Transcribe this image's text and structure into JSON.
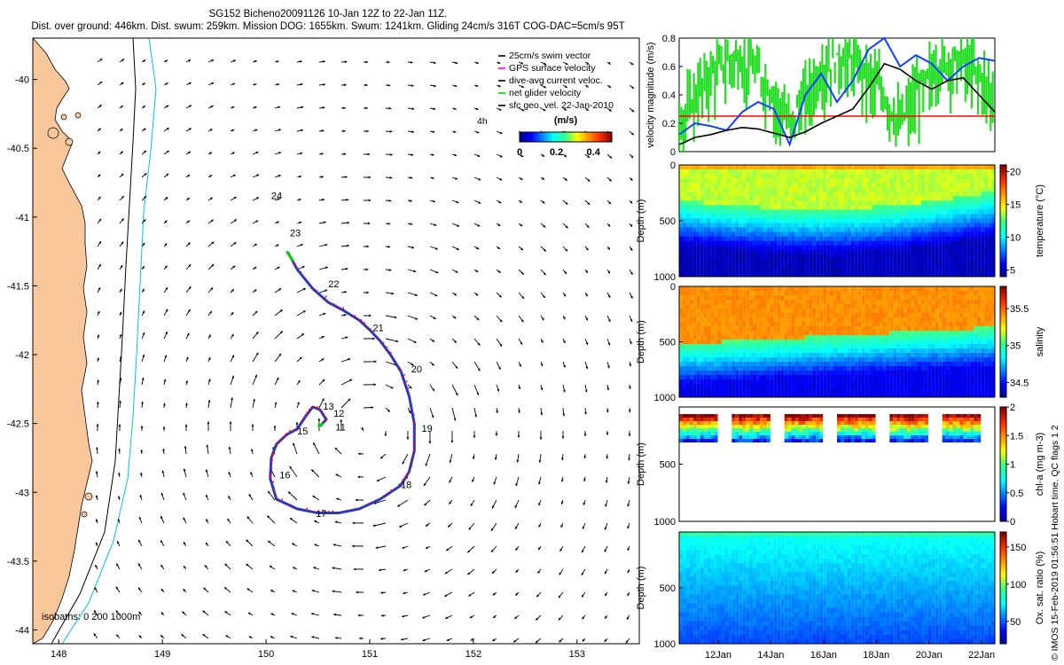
{
  "header": {
    "line1": "SG152 Bicheno20091126 10-Jan 12Z to 22-Jan 11Z.",
    "line2": "Dist. over ground: 446km. Dist. swum: 259km. Mission DOG: 1655km. Swum: 1241km. Gliding 24cm/s 316T COG-DAC=5cm/s 95T"
  },
  "credit": "© IMOS 15-Feb-2019 01:56:51 Hobart time. QC flags 1  2",
  "chart_data": [
    {
      "type": "scatter",
      "panel": "map",
      "x_ticks": [
        148,
        149,
        150,
        151,
        152,
        153
      ],
      "y_ticks": [
        -40,
        -40.5,
        -41,
        -41.5,
        -42,
        -42.5,
        -43,
        -43.5,
        -44
      ],
      "xlim": [
        147.75,
        153.6
      ],
      "ylim": [
        -44.1,
        -39.7
      ],
      "legend": {
        "position": "top-right",
        "entries": [
          {
            "label": "25cm/s swim vector",
            "color": "#000000"
          },
          {
            "label": "GPS surface velocity",
            "color": "#ff00ff"
          },
          {
            "label": "dive-avg current veloc.",
            "color": "#000000"
          },
          {
            "label": "net glider velocity",
            "color": "#00cc00"
          },
          {
            "label": "sfc geo. vel. 22-Jan-2010",
            "color": "#000000"
          }
        ]
      },
      "colorbar": {
        "title": "(m/s)",
        "ticks": [
          "0",
          "0.2",
          "0.4"
        ],
        "range": [
          0,
          0.5
        ]
      },
      "label_4h": "4h",
      "isobath_label": "isobaths: 0   200  1000m",
      "colors": {
        "land": "#f8c89c",
        "isobath_200": "#000000",
        "isobath_1000": "#00c8dc",
        "track": "#1e3cc8",
        "track_markers": "#ff0000"
      },
      "track": [
        [
          150.22,
          -41.27
        ],
        [
          150.3,
          -41.38
        ],
        [
          150.45,
          -41.52
        ],
        [
          150.6,
          -41.62
        ],
        [
          150.75,
          -41.68
        ],
        [
          150.9,
          -41.75
        ],
        [
          151.0,
          -41.82
        ],
        [
          151.1,
          -41.9
        ],
        [
          151.2,
          -42.0
        ],
        [
          151.3,
          -42.12
        ],
        [
          151.38,
          -42.3
        ],
        [
          151.43,
          -42.5
        ],
        [
          151.43,
          -42.7
        ],
        [
          151.38,
          -42.85
        ],
        [
          151.3,
          -42.95
        ],
        [
          151.1,
          -43.05
        ],
        [
          150.9,
          -43.12
        ],
        [
          150.7,
          -43.15
        ],
        [
          150.5,
          -43.15
        ],
        [
          150.3,
          -43.12
        ],
        [
          150.1,
          -43.05
        ],
        [
          150.04,
          -42.9
        ],
        [
          150.05,
          -42.75
        ],
        [
          150.1,
          -42.65
        ],
        [
          150.2,
          -42.58
        ],
        [
          150.3,
          -42.54
        ],
        [
          150.38,
          -42.45
        ],
        [
          150.45,
          -42.38
        ],
        [
          150.52,
          -42.4
        ],
        [
          150.58,
          -42.47
        ],
        [
          150.52,
          -42.52
        ]
      ],
      "day_labels": [
        {
          "text": "24",
          "lon": 150.05,
          "lat": -40.87
        },
        {
          "text": "23",
          "lon": 150.23,
          "lat": -41.14
        },
        {
          "text": "22",
          "lon": 150.6,
          "lat": -41.51
        },
        {
          "text": "21",
          "lon": 151.03,
          "lat": -41.83
        },
        {
          "text": "20",
          "lon": 151.4,
          "lat": -42.13
        },
        {
          "text": "19",
          "lon": 151.5,
          "lat": -42.56
        },
        {
          "text": "18",
          "lon": 151.3,
          "lat": -42.97
        },
        {
          "text": "17",
          "lon": 150.48,
          "lat": -43.18
        },
        {
          "text": "16",
          "lon": 150.13,
          "lat": -42.9
        },
        {
          "text": "15",
          "lon": 150.3,
          "lat": -42.58
        },
        {
          "text": "13",
          "lon": 150.55,
          "lat": -42.4
        },
        {
          "text": "12",
          "lon": 150.65,
          "lat": -42.45
        },
        {
          "text": "11",
          "lon": 150.67,
          "lat": -42.55
        }
      ]
    },
    {
      "type": "line",
      "panel": "velocity",
      "ylabel": "velocity magnitude (m/s)",
      "ylim": [
        0,
        0.8
      ],
      "y_ticks": [
        0,
        0.2,
        0.4,
        0.6,
        0.8
      ],
      "threshold": 0.25,
      "series": [
        {
          "color": "#1040ff",
          "t": [
            0,
            0.05,
            0.1,
            0.15,
            0.2,
            0.25,
            0.3,
            0.35,
            0.4,
            0.45,
            0.5,
            0.55,
            0.6,
            0.65,
            0.7,
            0.75,
            0.8,
            0.85,
            0.9,
            0.95,
            1.0
          ],
          "values": [
            0.12,
            0.2,
            0.18,
            0.15,
            0.28,
            0.35,
            0.3,
            0.05,
            0.4,
            0.55,
            0.35,
            0.5,
            0.72,
            0.82,
            0.6,
            0.68,
            0.62,
            0.5,
            0.6,
            0.66,
            0.64
          ]
        },
        {
          "color": "#000000",
          "t": [
            0,
            0.05,
            0.1,
            0.15,
            0.2,
            0.25,
            0.3,
            0.35,
            0.4,
            0.45,
            0.5,
            0.55,
            0.6,
            0.65,
            0.7,
            0.75,
            0.8,
            0.85,
            0.9,
            0.95,
            1.0
          ],
          "values": [
            0.05,
            0.1,
            0.12,
            0.15,
            0.17,
            0.16,
            0.13,
            0.1,
            0.14,
            0.2,
            0.25,
            0.3,
            0.45,
            0.62,
            0.58,
            0.5,
            0.44,
            0.5,
            0.52,
            0.4,
            0.28
          ]
        }
      ]
    },
    {
      "type": "heatmap",
      "panel": "temperature",
      "ylabel": "Depth (m)",
      "y_ticks": [
        0,
        500,
        1000
      ],
      "ylim": [
        0,
        1000
      ],
      "colorbar_label": "temperature (°C)",
      "colorbar_ticks": [
        "20",
        "15",
        "10",
        "5"
      ],
      "crange": [
        4,
        21
      ]
    },
    {
      "type": "heatmap",
      "panel": "salinity",
      "ylabel": "Depth (m)",
      "y_ticks": [
        0,
        500,
        1000
      ],
      "ylim": [
        0,
        1000
      ],
      "colorbar_label": "salinity",
      "colorbar_ticks": [
        "35.5",
        "35",
        "34.5"
      ],
      "crange": [
        34.3,
        35.8
      ]
    },
    {
      "type": "heatmap",
      "panel": "chlorophyll",
      "ylabel": "Depth (m)",
      "y_ticks": [
        500,
        1000
      ],
      "ylim": [
        0,
        1000
      ],
      "colorbar_label": "chl-a (mg m-3)",
      "colorbar_ticks": [
        "2",
        "1.5",
        "1",
        "0.5",
        "0"
      ],
      "crange": [
        0,
        2
      ]
    },
    {
      "type": "heatmap",
      "panel": "oxygen",
      "ylabel": "Depth (m)",
      "y_ticks": [
        500,
        1000
      ],
      "ylim": [
        0,
        1000
      ],
      "colorbar_label": "Ox. sat. ratio (%)",
      "colorbar_ticks": [
        "150",
        "100",
        "50"
      ],
      "crange": [
        20,
        170
      ],
      "x_ticks": [
        "12Jan",
        "14Jan",
        "16Jan",
        "18Jan",
        "20Jan",
        "22Jan"
      ]
    }
  ]
}
